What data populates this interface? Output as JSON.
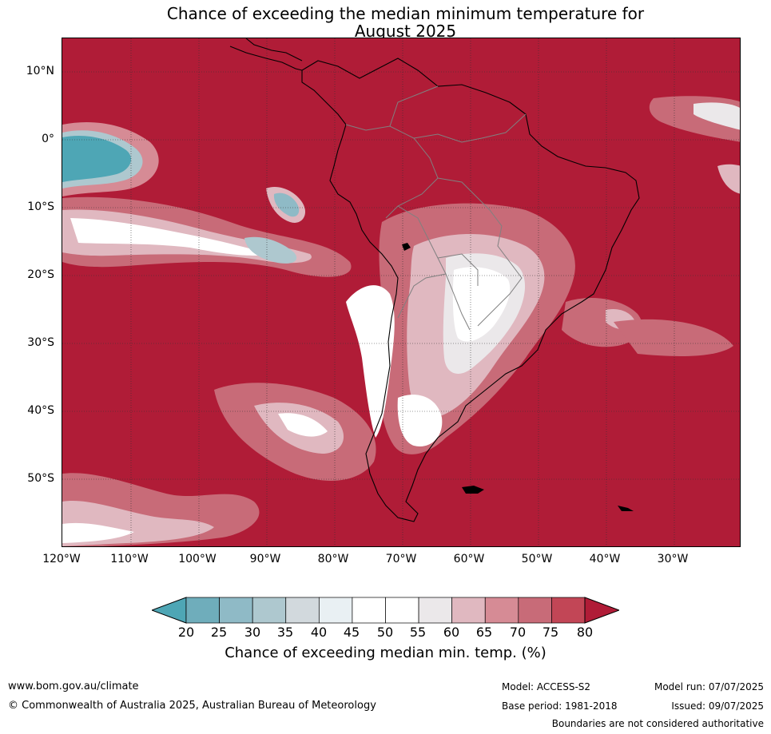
{
  "title_line1": "Chance of exceeding the median minimum temperature for",
  "title_line2": "August 2025",
  "map": {
    "lat_labels": [
      "10°N",
      "0°",
      "10°S",
      "20°S",
      "30°S",
      "40°S",
      "50°S"
    ],
    "lon_labels": [
      "120°W",
      "110°W",
      "100°W",
      "90°W",
      "80°W",
      "70°W",
      "60°W",
      "50°W",
      "40°W",
      "30°W"
    ],
    "colors": {
      "ocean_high": "#b01c37",
      "coast": "#000000",
      "borders": "#808080",
      "grid": "#333333"
    }
  },
  "colorbar": {
    "ticks": [
      "20",
      "25",
      "30",
      "35",
      "40",
      "45",
      "50",
      "55",
      "60",
      "65",
      "70",
      "75",
      "80"
    ],
    "colors": [
      "#4ea6b5",
      "#6fadbb",
      "#8fbac6",
      "#aec8cf",
      "#d2d9dd",
      "#e9f0f3",
      "#ffffff",
      "#ffffff",
      "#ebe8ea",
      "#e0b8c0",
      "#d68b95",
      "#c86b78",
      "#c24656",
      "#b01c37"
    ],
    "label": "Chance of exceeding median min. temp. (%)"
  },
  "footer": {
    "website": "www.bom.gov.au/climate",
    "copyright": "© Commonwealth of Australia 2025, Australian Bureau of Meteorology",
    "model": "Model: ACCESS-S2",
    "base_period": "Base period: 1981-2018",
    "model_run": "Model run: 07/07/2025",
    "issued": "Issued: 09/07/2025",
    "disclaimer": "Boundaries are not considered authoritative"
  }
}
